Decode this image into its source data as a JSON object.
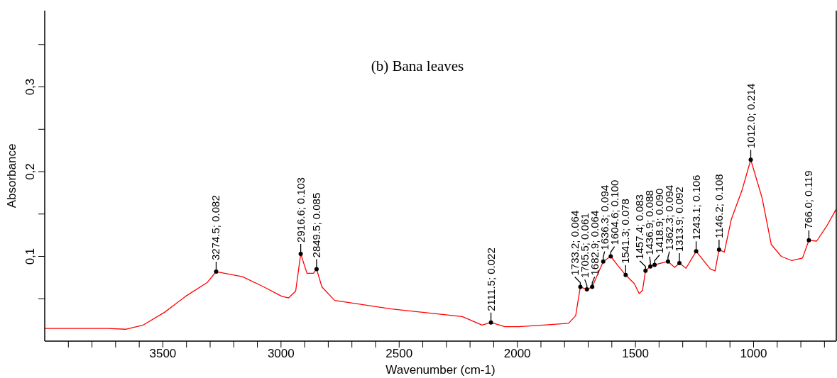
{
  "chart_data": {
    "type": "line",
    "title": "(b) Bana leaves",
    "xlabel": "Wavenumber (cm-1)",
    "ylabel": "Absorbance",
    "xlim": [
      4000,
      650
    ],
    "xticks": [
      {
        "value": 3900,
        "label": null
      },
      {
        "value": 3800,
        "label": null
      },
      {
        "value": 3700,
        "label": null
      },
      {
        "value": 3600,
        "label": null
      },
      3500,
      {
        "value": 3400,
        "label": null
      },
      {
        "value": 3300,
        "label": null
      },
      {
        "value": 3200,
        "label": null
      },
      {
        "value": 3100,
        "label": null
      },
      3000,
      {
        "value": 2900,
        "label": null
      },
      {
        "value": 2800,
        "label": null
      },
      {
        "value": 2700,
        "label": null
      },
      {
        "value": 2600,
        "label": null
      },
      2500,
      {
        "value": 2400,
        "label": null
      },
      {
        "value": 2300,
        "label": null
      },
      {
        "value": 2200,
        "label": null
      },
      {
        "value": 2100,
        "label": null
      },
      2000,
      {
        "value": 1900,
        "label": null
      },
      {
        "value": 1800,
        "label": null
      },
      {
        "value": 1700,
        "label": null
      },
      {
        "value": 1600,
        "label": null
      },
      1500,
      {
        "value": 1400,
        "label": null
      },
      {
        "value": 1300,
        "label": null
      },
      {
        "value": 1200,
        "label": null
      },
      {
        "value": 1100,
        "label": null
      },
      1000,
      {
        "value": 900,
        "label": null
      },
      {
        "value": 800,
        "label": null
      },
      {
        "value": 700,
        "label": null
      }
    ],
    "ylim": [
      0,
      0.39
    ],
    "yticks": [
      {
        "value": 0.05,
        "label": null
      },
      {
        "value": 0.1,
        "label": "0,1"
      },
      {
        "value": 0.15,
        "label": null
      },
      {
        "value": 0.2,
        "label": "0,2"
      },
      {
        "value": 0.25,
        "label": null
      },
      {
        "value": 0.3,
        "label": "0,3"
      },
      {
        "value": 0.35,
        "label": null
      }
    ],
    "grid": false,
    "legend": false,
    "marker": "none",
    "line_style": "solid",
    "x": [
      4000,
      3733,
      3658,
      3583,
      3493,
      3403,
      3313,
      3274.5,
      3163,
      3073,
      2998,
      2968,
      2938,
      2916.6,
      2890,
      2863,
      2849.5,
      2827,
      2773,
      2533,
      2233,
      2149,
      2111.5,
      2053,
      1993,
      1783,
      1753,
      1733.2,
      1705.5,
      1682.9,
      1636.3,
      1604.6,
      1574,
      1541.3,
      1505,
      1484,
      1470,
      1457.4,
      1436.9,
      1418.9,
      1362.3,
      1334,
      1313.9,
      1286,
      1243.1,
      1183,
      1163,
      1146.2,
      1124,
      1094,
      1049,
      1012.0,
      964,
      925,
      883,
      838,
      793,
      766.0,
      733,
      688,
      650
    ],
    "series": [
      {
        "color": "#ff0000",
        "values": [
          0.015,
          0.015,
          0.014,
          0.019,
          0.034,
          0.053,
          0.069,
          0.082,
          0.076,
          0.064,
          0.053,
          0.051,
          0.059,
          0.103,
          0.08,
          0.08,
          0.085,
          0.064,
          0.048,
          0.038,
          0.029,
          0.019,
          0.022,
          0.017,
          0.017,
          0.021,
          0.03,
          0.064,
          0.061,
          0.064,
          0.094,
          0.1,
          0.089,
          0.078,
          0.068,
          0.056,
          0.06,
          0.083,
          0.088,
          0.09,
          0.094,
          0.087,
          0.092,
          0.086,
          0.106,
          0.085,
          0.083,
          0.108,
          0.105,
          0.144,
          0.178,
          0.214,
          0.169,
          0.114,
          0.1,
          0.095,
          0.098,
          0.119,
          0.118,
          0.137,
          0.156
        ]
      }
    ],
    "annotations": [
      {
        "text": "3274.5; 0.082",
        "x": 3274.5,
        "y": 0.082
      },
      {
        "text": "2916.6; 0.103",
        "x": 2916.6,
        "y": 0.103
      },
      {
        "text": "2849.5; 0.085",
        "x": 2849.5,
        "y": 0.085
      },
      {
        "text": "2111.5; 0.022",
        "x": 2111.5,
        "y": 0.022
      },
      {
        "text": "1733.2; 0.064",
        "x": 1733.2,
        "y": 0.064
      },
      {
        "text": "1705.5; 0.061",
        "x": 1705.5,
        "y": 0.061
      },
      {
        "text": "1682.9; 0.064",
        "x": 1682.9,
        "y": 0.064
      },
      {
        "text": "1636.3; 0.094",
        "x": 1636.3,
        "y": 0.094
      },
      {
        "text": "1604.6; 0.100",
        "x": 1604.6,
        "y": 0.1
      },
      {
        "text": "1541.3; 0.078",
        "x": 1541.3,
        "y": 0.078
      },
      {
        "text": "1457.4; 0.083",
        "x": 1457.4,
        "y": 0.083
      },
      {
        "text": "1436.9; 0.088",
        "x": 1436.9,
        "y": 0.088
      },
      {
        "text": "1418.9; 0.090",
        "x": 1418.9,
        "y": 0.09
      },
      {
        "text": "1362.3; 0.094",
        "x": 1362.3,
        "y": 0.094
      },
      {
        "text": "1313.9; 0.092",
        "x": 1313.9,
        "y": 0.092
      },
      {
        "text": "1243.1; 0.106",
        "x": 1243.1,
        "y": 0.106
      },
      {
        "text": "1146.2; 0.108",
        "x": 1146.2,
        "y": 0.108
      },
      {
        "text": "1012.0; 0.214",
        "x": 1012.0,
        "y": 0.214
      },
      {
        "text": "766.0; 0.119",
        "x": 766.0,
        "y": 0.119
      }
    ]
  }
}
